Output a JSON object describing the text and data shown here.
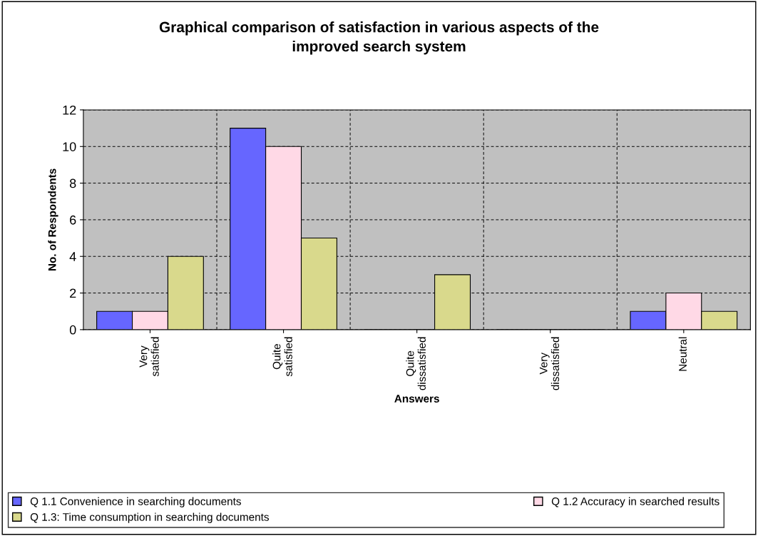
{
  "chart_data": {
    "type": "bar",
    "title": "Graphical comparison of satisfaction in various aspects of the\nimproved search system",
    "xlabel": "Answers",
    "ylabel": "No. of Respondents",
    "categories": [
      "Very\nsatisfied",
      "Quite\nsatisfied",
      "Quite\ndissatisfied",
      "Very\ndissatisfied",
      "Neutral"
    ],
    "series": [
      {
        "name": "Q 1.1 Convenience in searching documents",
        "color": "#6666ff",
        "values": [
          1,
          11,
          0,
          0,
          1
        ]
      },
      {
        "name": "Q 1.2 Accuracy in searched results",
        "color": "#ffd9e6",
        "values": [
          1,
          10,
          0,
          0,
          2
        ]
      },
      {
        "name": "Q 1.3: Time consumption in searching documents",
        "color": "#d9d98c",
        "values": [
          4,
          5,
          3,
          0,
          1
        ]
      }
    ],
    "ylim": [
      0,
      12
    ],
    "yticks": [
      0,
      2,
      4,
      6,
      8,
      10,
      12
    ],
    "grid": true,
    "legend": "bottom"
  }
}
